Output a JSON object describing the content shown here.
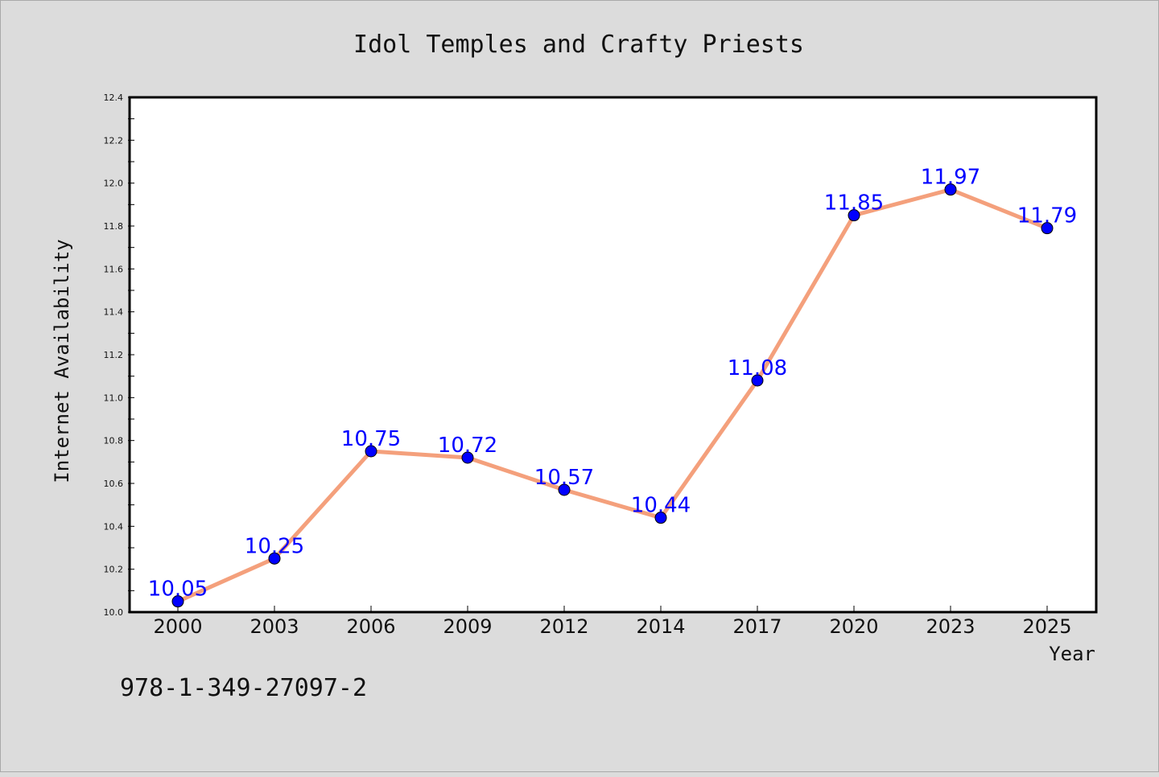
{
  "chart_data": {
    "type": "line",
    "title": "Idol Temples and Crafty Priests",
    "xlabel": "Year",
    "ylabel": "Internet Availability",
    "categories": [
      "2000",
      "2003",
      "2006",
      "2009",
      "2012",
      "2014",
      "2017",
      "2020",
      "2023",
      "2025"
    ],
    "series": [
      {
        "values": [
          10.05,
          10.25,
          10.75,
          10.72,
          10.57,
          10.44,
          11.08,
          11.85,
          11.97,
          11.79
        ],
        "labels": [
          "10.05",
          "10.25",
          "10.75",
          "10.72",
          "10.57",
          "10.44",
          "11.08",
          "11.85",
          "11.97",
          "11.79"
        ],
        "line_color": "#f4a07c",
        "marker_color": "#0000ff",
        "label_color": "#0000ff"
      }
    ],
    "ylim": [
      10.0,
      12.4
    ],
    "yticks": [
      "10.0",
      "10.2",
      "10.4",
      "10.6",
      "10.8",
      "11.0",
      "11.2",
      "11.4",
      "11.6",
      "11.8",
      "12.0",
      "12.2",
      "12.4"
    ],
    "grid": false,
    "background": "#dcdcdc",
    "plot_background": "#ffffff"
  },
  "footnote": "978-1-349-27097-2"
}
